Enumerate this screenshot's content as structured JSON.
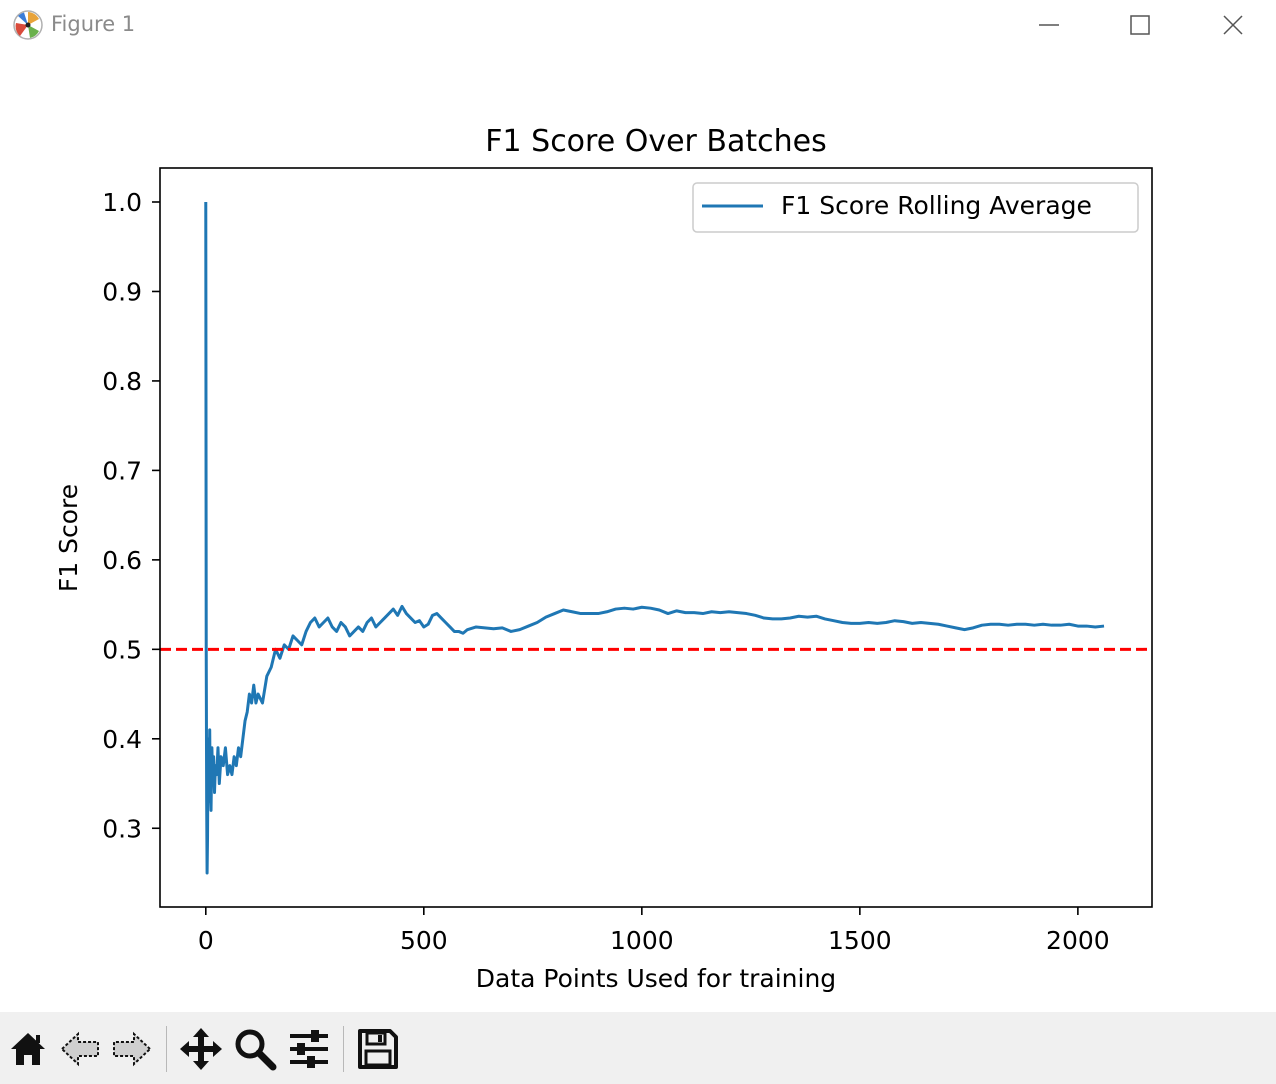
{
  "window": {
    "title": "Figure 1"
  },
  "toolbar": {
    "icons": [
      "home-icon",
      "back-arrow-icon",
      "forward-arrow-icon",
      "pan-icon",
      "zoom-icon",
      "configure-subplots-icon",
      "save-icon"
    ]
  },
  "colors": {
    "series": "#1f77b4",
    "threshold": "#ff0000",
    "toolbar_bg": "#f0f0f0"
  },
  "chart_data": {
    "type": "line",
    "title": "F1 Score Over Batches",
    "xlabel": "Data Points Used for training",
    "ylabel": "F1 Score",
    "xlim": [
      -105,
      2170
    ],
    "ylim": [
      0.212,
      1.038
    ],
    "xticks": [
      0,
      500,
      1000,
      1500,
      2000
    ],
    "xtick_labels": [
      "0",
      "500",
      "1000",
      "1500",
      "2000"
    ],
    "yticks": [
      0.3,
      0.4,
      0.5,
      0.6,
      0.7,
      0.8,
      0.9,
      1.0
    ],
    "ytick_labels": [
      "0.3",
      "0.4",
      "0.5",
      "0.6",
      "0.7",
      "0.8",
      "0.9",
      "1.0"
    ],
    "grid": false,
    "legend_position": "top-right",
    "series": [
      {
        "name": "F1 Score Rolling Average",
        "style": "solid",
        "x": [
          0,
          1,
          2,
          3,
          4,
          5,
          6,
          7,
          8,
          9,
          10,
          12,
          14,
          16,
          18,
          20,
          22,
          25,
          28,
          31,
          35,
          40,
          45,
          50,
          55,
          60,
          65,
          70,
          75,
          80,
          90,
          95,
          100,
          105,
          110,
          115,
          120,
          130,
          140,
          150,
          160,
          170,
          180,
          190,
          200,
          210,
          220,
          230,
          240,
          250,
          260,
          270,
          280,
          290,
          300,
          310,
          320,
          330,
          340,
          350,
          360,
          370,
          380,
          390,
          400,
          410,
          420,
          430,
          440,
          450,
          460,
          470,
          480,
          490,
          500,
          510,
          520,
          530,
          540,
          550,
          560,
          570,
          580,
          590,
          600,
          620,
          640,
          660,
          680,
          700,
          720,
          740,
          760,
          780,
          800,
          820,
          840,
          860,
          880,
          900,
          920,
          940,
          960,
          980,
          1000,
          1020,
          1040,
          1060,
          1080,
          1100,
          1120,
          1140,
          1160,
          1180,
          1200,
          1220,
          1240,
          1260,
          1280,
          1300,
          1320,
          1340,
          1360,
          1380,
          1400,
          1420,
          1440,
          1460,
          1480,
          1500,
          1520,
          1540,
          1560,
          1580,
          1600,
          1620,
          1640,
          1660,
          1680,
          1700,
          1720,
          1740,
          1760,
          1780,
          1800,
          1820,
          1840,
          1860,
          1880,
          1900,
          1920,
          1940,
          1960,
          1980,
          2000,
          2020,
          2040,
          2060
        ],
        "y": [
          1.0,
          0.5,
          0.33,
          0.25,
          0.29,
          0.38,
          0.33,
          0.4,
          0.36,
          0.41,
          0.35,
          0.32,
          0.39,
          0.35,
          0.38,
          0.34,
          0.37,
          0.36,
          0.39,
          0.35,
          0.38,
          0.37,
          0.39,
          0.36,
          0.37,
          0.36,
          0.38,
          0.37,
          0.39,
          0.38,
          0.42,
          0.43,
          0.45,
          0.44,
          0.46,
          0.44,
          0.45,
          0.44,
          0.47,
          0.48,
          0.5,
          0.49,
          0.505,
          0.5,
          0.515,
          0.51,
          0.505,
          0.52,
          0.53,
          0.535,
          0.525,
          0.53,
          0.535,
          0.525,
          0.52,
          0.53,
          0.525,
          0.515,
          0.52,
          0.525,
          0.52,
          0.53,
          0.535,
          0.525,
          0.53,
          0.535,
          0.54,
          0.545,
          0.538,
          0.548,
          0.54,
          0.535,
          0.53,
          0.532,
          0.525,
          0.528,
          0.538,
          0.54,
          0.535,
          0.53,
          0.525,
          0.52,
          0.52,
          0.518,
          0.522,
          0.525,
          0.524,
          0.523,
          0.524,
          0.52,
          0.522,
          0.526,
          0.53,
          0.536,
          0.54,
          0.544,
          0.542,
          0.54,
          0.54,
          0.54,
          0.542,
          0.545,
          0.546,
          0.545,
          0.547,
          0.546,
          0.544,
          0.54,
          0.543,
          0.541,
          0.541,
          0.54,
          0.542,
          0.541,
          0.542,
          0.541,
          0.54,
          0.538,
          0.535,
          0.534,
          0.534,
          0.535,
          0.537,
          0.536,
          0.537,
          0.534,
          0.532,
          0.53,
          0.529,
          0.529,
          0.53,
          0.529,
          0.53,
          0.532,
          0.531,
          0.529,
          0.53,
          0.529,
          0.528,
          0.526,
          0.524,
          0.522,
          0.524,
          0.527,
          0.528,
          0.528,
          0.527,
          0.528,
          0.528,
          0.527,
          0.528,
          0.527,
          0.527,
          0.528,
          0.526,
          0.526,
          0.525,
          0.526
        ],
        "color": "#1f77b4"
      },
      {
        "x": [
          -105,
          2170
        ],
        "y": [
          0.5,
          0.5
        ],
        "style": "dashed",
        "color": "#ff0000"
      }
    ]
  }
}
